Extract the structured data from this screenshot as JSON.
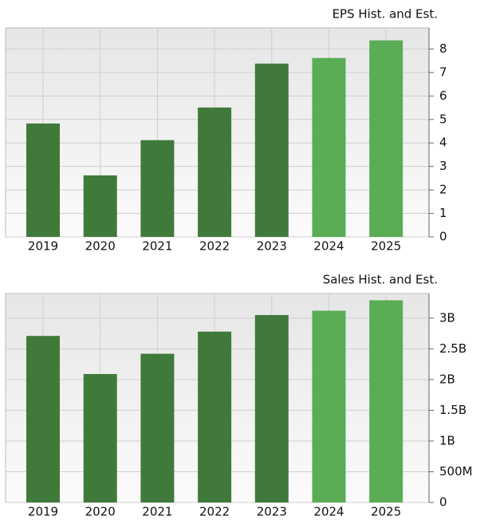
{
  "chart_data": [
    {
      "type": "bar",
      "title": "EPS Hist. and Est.",
      "categories": [
        "2019",
        "2020",
        "2021",
        "2022",
        "2023",
        "2024",
        "2025"
      ],
      "values": [
        4.83,
        2.62,
        4.12,
        5.51,
        7.38,
        7.62,
        8.37
      ],
      "colors": [
        "#3f7a3a",
        "#3f7a3a",
        "#3f7a3a",
        "#3f7a3a",
        "#3f7a3a",
        "#5aac55",
        "#5aac55"
      ],
      "ylim": [
        0,
        8.9
      ],
      "yticks": [
        0,
        1,
        2,
        3,
        4,
        5,
        6,
        7,
        8
      ],
      "grid": true
    },
    {
      "type": "bar",
      "title": "Sales Hist. and Est.",
      "categories": [
        "2019",
        "2020",
        "2021",
        "2022",
        "2023",
        "2024",
        "2025"
      ],
      "values": [
        2710000000,
        2090000000,
        2420000000,
        2780000000,
        3050000000,
        3120000000,
        3290000000
      ],
      "colors": [
        "#3f7a3a",
        "#3f7a3a",
        "#3f7a3a",
        "#3f7a3a",
        "#3f7a3a",
        "#5aac55",
        "#5aac55"
      ],
      "ylim": [
        0,
        3400000000
      ],
      "yticks": [
        0,
        {
          "value": 500000000,
          "label": "500M"
        },
        {
          "value": 1000000000,
          "label": "1B"
        },
        {
          "value": 1500000000,
          "label": "1.5B"
        },
        {
          "value": 2000000000,
          "label": "2B"
        },
        {
          "value": 2500000000,
          "label": "2.5B"
        },
        {
          "value": 3000000000,
          "label": "3B"
        }
      ],
      "grid": true
    }
  ]
}
